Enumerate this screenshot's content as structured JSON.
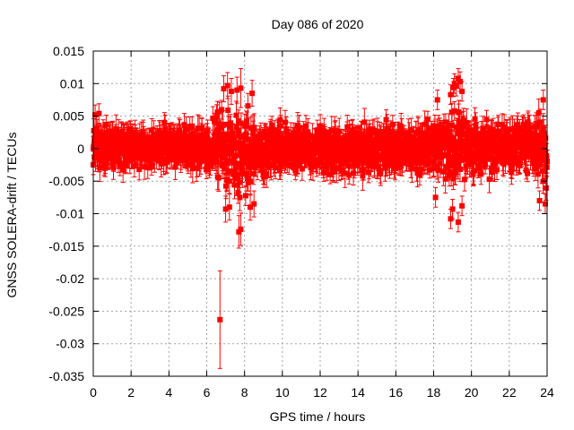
{
  "chart_data": {
    "type": "scatter",
    "title": "Day 086 of 2020",
    "xlabel": "GPS time / hours",
    "ylabel": "GNSS SOLERA-drift / TECUs",
    "xlim": [
      0,
      24
    ],
    "ylim": [
      -0.035,
      0.015
    ],
    "xticks": [
      0,
      2,
      4,
      6,
      8,
      10,
      12,
      14,
      16,
      18,
      20,
      22,
      24
    ],
    "xtick_labels": [
      "0",
      "2",
      "4",
      "6",
      "8",
      "10",
      "12",
      "14",
      "16",
      "18",
      "20",
      "22",
      "24"
    ],
    "yticks": [
      -0.035,
      -0.03,
      -0.025,
      -0.02,
      -0.015,
      -0.01,
      -0.005,
      0,
      0.005,
      0.01,
      0.015
    ],
    "ytick_labels": [
      "-0.035",
      "-0.03",
      "-0.025",
      "-0.02",
      "-0.015",
      "-0.01",
      "-0.005",
      "0",
      "0.005",
      "0.01",
      "0.015"
    ],
    "grid": true,
    "marker": "square",
    "series_color": "#ff0000",
    "band": [
      [
        0.0,
        -0.0045,
        0.005
      ],
      [
        0.5,
        -0.004,
        0.0045
      ],
      [
        1.0,
        -0.0035,
        0.004
      ],
      [
        2.0,
        -0.0035,
        0.004
      ],
      [
        3.0,
        -0.0035,
        0.004
      ],
      [
        4.0,
        -0.0035,
        0.004
      ],
      [
        5.0,
        -0.0035,
        0.0045
      ],
      [
        6.0,
        -0.004,
        0.0045
      ],
      [
        6.5,
        -0.005,
        0.006
      ],
      [
        7.0,
        -0.008,
        0.008
      ],
      [
        7.5,
        -0.008,
        0.009
      ],
      [
        8.0,
        -0.008,
        0.008
      ],
      [
        8.5,
        -0.006,
        0.006
      ],
      [
        9.0,
        -0.004,
        0.004
      ],
      [
        10.0,
        -0.0045,
        0.0045
      ],
      [
        12.0,
        -0.0045,
        0.0045
      ],
      [
        14.0,
        -0.0045,
        0.0045
      ],
      [
        16.0,
        -0.0045,
        0.0045
      ],
      [
        17.5,
        -0.0045,
        0.0045
      ],
      [
        18.0,
        -0.005,
        0.005
      ],
      [
        18.5,
        -0.005,
        0.006
      ],
      [
        19.0,
        -0.007,
        0.009
      ],
      [
        19.5,
        -0.006,
        0.008
      ],
      [
        20.0,
        -0.005,
        0.005
      ],
      [
        22.0,
        -0.0045,
        0.0045
      ],
      [
        23.0,
        -0.005,
        0.005
      ],
      [
        24.0,
        -0.006,
        0.006
      ]
    ],
    "notable_points": [
      {
        "x": 6.7,
        "y": -0.0263,
        "yerr": 0.0075
      },
      {
        "x": 7.7,
        "y": -0.0128,
        "yerr": 0.0025
      },
      {
        "x": 7.8,
        "y": -0.0124,
        "yerr": 0.0025
      },
      {
        "x": 7.0,
        "y": -0.0093,
        "yerr": 0.002
      },
      {
        "x": 7.2,
        "y": -0.009,
        "yerr": 0.002
      },
      {
        "x": 8.3,
        "y": -0.009,
        "yerr": 0.002
      },
      {
        "x": 8.5,
        "y": -0.0085,
        "yerr": 0.002
      },
      {
        "x": 6.9,
        "y": 0.0092,
        "yerr": 0.002
      },
      {
        "x": 7.1,
        "y": 0.0097,
        "yerr": 0.002
      },
      {
        "x": 7.6,
        "y": 0.009,
        "yerr": 0.002
      },
      {
        "x": 7.8,
        "y": 0.0093,
        "yerr": 0.003
      },
      {
        "x": 8.4,
        "y": 0.0085,
        "yerr": 0.002
      },
      {
        "x": 7.3,
        "y": 0.0088,
        "yerr": 0.002
      },
      {
        "x": 18.2,
        "y": 0.0075,
        "yerr": 0.0015
      },
      {
        "x": 18.9,
        "y": 0.0083,
        "yerr": 0.0015
      },
      {
        "x": 19.1,
        "y": 0.01,
        "yerr": 0.0015
      },
      {
        "x": 19.3,
        "y": 0.0108,
        "yerr": 0.0015
      },
      {
        "x": 19.4,
        "y": 0.0103,
        "yerr": 0.0015
      },
      {
        "x": 19.5,
        "y": 0.0088,
        "yerr": 0.0015
      },
      {
        "x": 19.2,
        "y": 0.0096,
        "yerr": 0.0015
      },
      {
        "x": 18.9,
        "y": -0.0108,
        "yerr": 0.0015
      },
      {
        "x": 19.3,
        "y": -0.0113,
        "yerr": 0.0015
      },
      {
        "x": 19.0,
        "y": -0.0093,
        "yerr": 0.0015
      },
      {
        "x": 19.5,
        "y": -0.0088,
        "yerr": 0.0015
      },
      {
        "x": 18.1,
        "y": -0.0075,
        "yerr": 0.0015
      },
      {
        "x": 0.1,
        "y": 0.0052,
        "yerr": 0.0015
      },
      {
        "x": 0.3,
        "y": 0.0054,
        "yerr": 0.0015
      },
      {
        "x": 0.0,
        "y": -0.0025,
        "yerr": 0.0015
      },
      {
        "x": 23.8,
        "y": 0.0075,
        "yerr": 0.0015
      },
      {
        "x": 23.6,
        "y": -0.008,
        "yerr": 0.0015
      },
      {
        "x": 23.9,
        "y": -0.0085,
        "yerr": 0.0015
      }
    ],
    "dense_point_count": 1800,
    "seed": 86
  }
}
